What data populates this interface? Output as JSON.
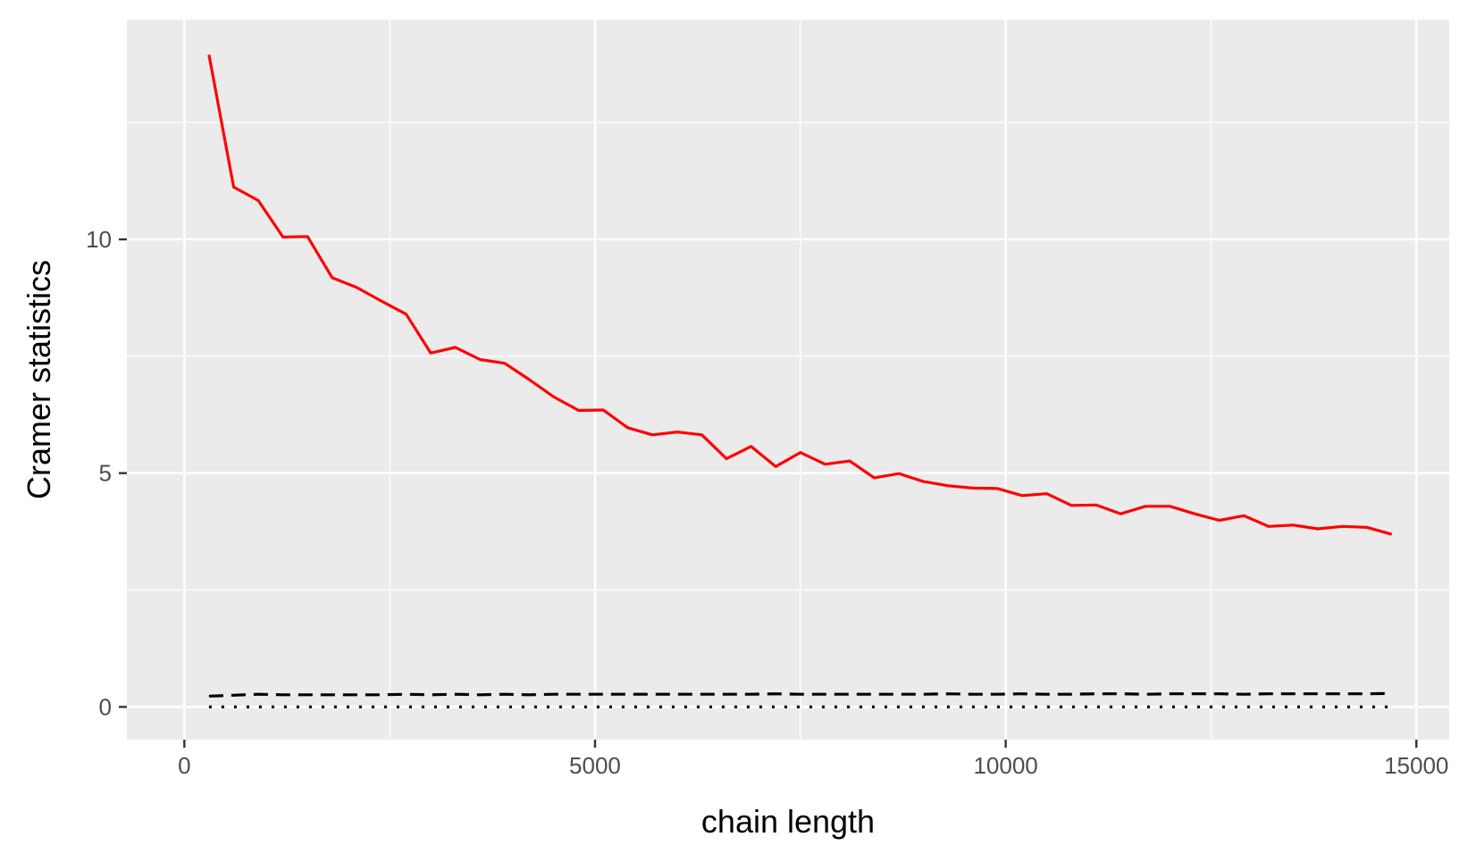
{
  "chart_data": {
    "type": "line",
    "title": "",
    "xlabel": "chain length",
    "ylabel": "Cramer statistics",
    "xlim": [
      -700,
      15400
    ],
    "ylim": [
      -0.7,
      14.7
    ],
    "x_ticks": [
      0,
      5000,
      10000,
      15000
    ],
    "x_tick_labels": [
      "0",
      "5000",
      "10000",
      "15000"
    ],
    "y_ticks": [
      0,
      5,
      10
    ],
    "y_tick_labels": [
      "0",
      "5",
      "10"
    ],
    "grid": true,
    "legend": "none",
    "x": [
      300,
      600,
      900,
      1200,
      1500,
      1800,
      2100,
      2400,
      2700,
      3000,
      3300,
      3600,
      3900,
      4200,
      4500,
      4800,
      5100,
      5400,
      5700,
      6000,
      6300,
      6600,
      6900,
      7200,
      7500,
      7800,
      8100,
      8400,
      8700,
      9000,
      9300,
      9600,
      9900,
      10200,
      10500,
      10800,
      11100,
      11400,
      11700,
      12000,
      12300,
      12600,
      12900,
      13200,
      13500,
      13800,
      14100,
      14400,
      14700
    ],
    "series": [
      {
        "color": "#FF0000",
        "linestyle": "solid",
        "values": [
          13.95,
          11.12,
          10.83,
          10.05,
          10.06,
          9.18,
          8.97,
          8.68,
          8.4,
          7.57,
          7.69,
          7.43,
          7.35,
          7.0,
          6.63,
          6.34,
          6.35,
          5.97,
          5.82,
          5.88,
          5.82,
          5.31,
          5.57,
          5.14,
          5.44,
          5.19,
          5.26,
          4.9,
          4.99,
          4.82,
          4.73,
          4.68,
          4.67,
          4.52,
          4.56,
          4.31,
          4.32,
          4.13,
          4.29,
          4.29,
          4.13,
          3.99,
          4.09,
          3.86,
          3.89,
          3.81,
          3.86,
          3.84,
          3.69
        ]
      },
      {
        "color": "#000000",
        "linestyle": "dashed",
        "values": [
          0.23,
          0.25,
          0.27,
          0.26,
          0.26,
          0.26,
          0.26,
          0.26,
          0.27,
          0.26,
          0.27,
          0.26,
          0.27,
          0.26,
          0.27,
          0.27,
          0.27,
          0.27,
          0.27,
          0.27,
          0.27,
          0.27,
          0.27,
          0.28,
          0.27,
          0.27,
          0.27,
          0.27,
          0.27,
          0.27,
          0.28,
          0.27,
          0.27,
          0.28,
          0.27,
          0.27,
          0.28,
          0.28,
          0.27,
          0.28,
          0.28,
          0.28,
          0.27,
          0.28,
          0.28,
          0.28,
          0.28,
          0.28,
          0.29
        ]
      },
      {
        "color": "#000000",
        "linestyle": "dotted",
        "values": [
          0,
          0,
          0,
          0,
          0,
          0,
          0,
          0,
          0,
          0,
          0,
          0,
          0,
          0,
          0,
          0,
          0,
          0,
          0,
          0,
          0,
          0,
          0,
          0,
          0,
          0,
          0,
          0,
          0,
          0,
          0,
          0,
          0,
          0,
          0,
          0,
          0,
          0,
          0,
          0,
          0,
          0,
          0,
          0,
          0,
          0,
          0,
          0,
          0
        ]
      }
    ]
  }
}
